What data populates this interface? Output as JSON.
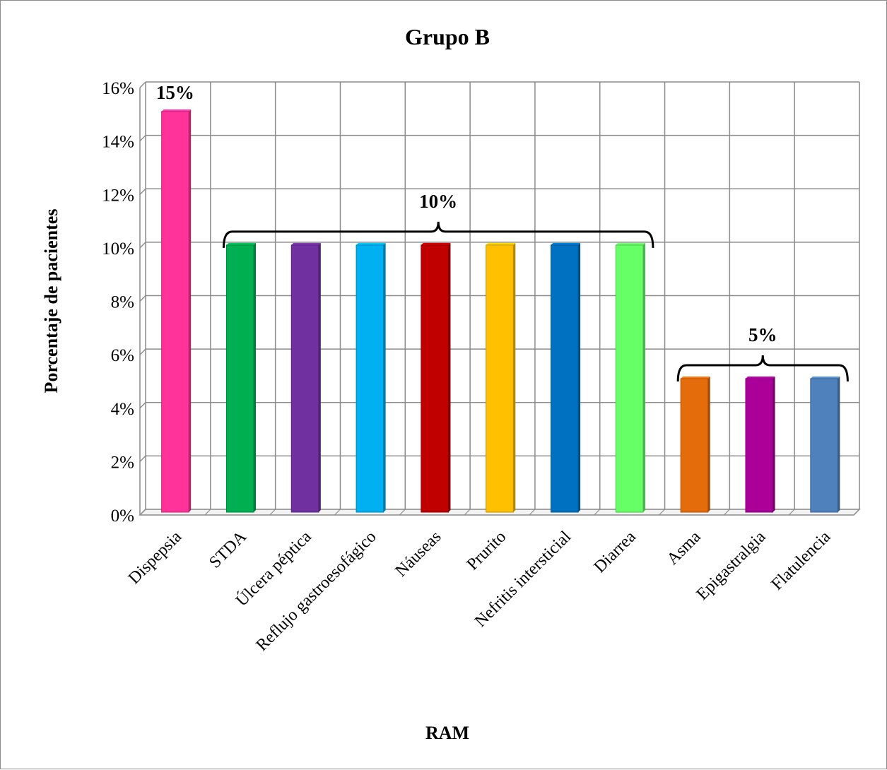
{
  "chart_data": {
    "type": "bar",
    "title": "Grupo B",
    "xlabel": "RAM",
    "ylabel": "Porcentaje de pacientes",
    "ylim": [
      0,
      16
    ],
    "ytick_step": 2,
    "ytick_labels": [
      "0%",
      "2%",
      "4%",
      "6%",
      "8%",
      "10%",
      "12%",
      "14%",
      "16%"
    ],
    "grid": true,
    "legend": "none",
    "categories": [
      "Dispepsia",
      "STDA",
      "Úlcera péptica",
      "Reflujo gastroesofágico",
      "Náuseas",
      "Prurito",
      "Nefritis intersticial",
      "Diarrea",
      "Asma",
      "Epigastralgia",
      "Flatulencia"
    ],
    "values": [
      15,
      10,
      10,
      10,
      10,
      10,
      10,
      10,
      5,
      5,
      5
    ],
    "colors": [
      "#ff3399",
      "#00b050",
      "#7030a0",
      "#00b0f0",
      "#c00000",
      "#ffc000",
      "#0070c0",
      "#66ff66",
      "#e46c0a",
      "#aa0099",
      "#4f81bd"
    ],
    "annotations": [
      {
        "label": "15%",
        "from": 0,
        "to": 0,
        "value": 15,
        "bracket": false
      },
      {
        "label": "10%",
        "from": 1,
        "to": 7,
        "value": 10,
        "bracket": true
      },
      {
        "label": "5%",
        "from": 8,
        "to": 10,
        "value": 5,
        "bracket": true
      }
    ]
  }
}
